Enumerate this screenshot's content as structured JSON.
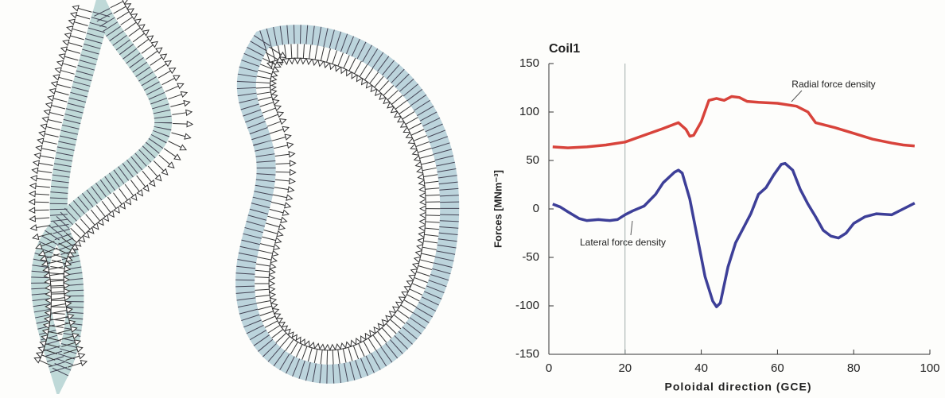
{
  "chart_data": {
    "type": "line",
    "title": "Coil1",
    "x_label": "Poloidal direction (GCE)",
    "y_label": "Forces [MNm⁻³]",
    "xlim": [
      0,
      100
    ],
    "xticks": [
      0,
      20,
      40,
      60,
      80,
      100
    ],
    "ylim": [
      -150,
      150
    ],
    "yticks": [
      -150,
      -100,
      -50,
      0,
      50,
      100,
      150
    ],
    "vline": 20,
    "series": [
      {
        "name": "Radial force density",
        "color": "#d8433b",
        "x": [
          1,
          5,
          10,
          15,
          20,
          25,
          30,
          34,
          36,
          37,
          38,
          40,
          42,
          44,
          46,
          48,
          50,
          52,
          55,
          60,
          65,
          68,
          70,
          75,
          80,
          85,
          90,
          93,
          96
        ],
        "values": [
          64,
          63,
          64,
          66,
          69,
          76,
          83,
          89,
          82,
          75,
          76,
          90,
          112,
          114,
          112,
          116,
          115,
          111,
          110,
          109,
          106,
          100,
          89,
          84,
          78,
          72,
          68,
          66,
          65
        ]
      },
      {
        "name": "Lateral force density",
        "color": "#3d3f98",
        "x": [
          1,
          3,
          5,
          8,
          10,
          13,
          16,
          18,
          20,
          22,
          25,
          28,
          30,
          33,
          34,
          35,
          37,
          39,
          41,
          43,
          44,
          45,
          47,
          49,
          51,
          53,
          55,
          57,
          59,
          61,
          62,
          64,
          66,
          68,
          70,
          72,
          74,
          76,
          78,
          80,
          83,
          86,
          90,
          93,
          96
        ],
        "values": [
          5,
          2,
          -3,
          -10,
          -12,
          -11,
          -12,
          -11,
          -6,
          -2,
          3,
          15,
          27,
          38,
          40,
          37,
          10,
          -30,
          -70,
          -95,
          -101,
          -97,
          -60,
          -35,
          -20,
          -5,
          15,
          22,
          35,
          46,
          47,
          40,
          20,
          5,
          -8,
          -22,
          -28,
          -30,
          -25,
          -15,
          -8,
          -5,
          -6,
          0,
          6
        ]
      }
    ]
  }
}
